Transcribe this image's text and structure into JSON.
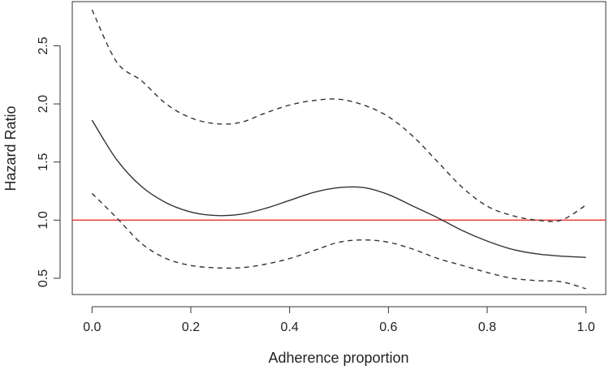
{
  "chart_data": {
    "type": "line",
    "title": "",
    "xlabel": "Adherence proportion",
    "ylabel": "Hazard Ratio",
    "xlim": [
      -0.04,
      1.04
    ],
    "ylim": [
      0.36,
      2.88
    ],
    "x_ticks": [
      {
        "value": 0.0,
        "label": "0.0"
      },
      {
        "value": 0.2,
        "label": "0.2"
      },
      {
        "value": 0.4,
        "label": "0.4"
      },
      {
        "value": 0.6,
        "label": "0.6"
      },
      {
        "value": 0.8,
        "label": "0.8"
      },
      {
        "value": 1.0,
        "label": "1.0"
      }
    ],
    "y_ticks": [
      {
        "value": 0.5,
        "label": "0.5"
      },
      {
        "value": 1.0,
        "label": "1.0"
      },
      {
        "value": 1.5,
        "label": "1.5"
      },
      {
        "value": 2.0,
        "label": "2.0"
      },
      {
        "value": 2.5,
        "label": "2.5"
      }
    ],
    "grid": false,
    "legend": "none",
    "reference_line": {
      "y": 1.0,
      "color": "#ee4444"
    },
    "series": [
      {
        "style": "solid",
        "color": "#333333",
        "x": [
          0.0,
          0.05,
          0.1,
          0.15,
          0.2,
          0.25,
          0.3,
          0.35,
          0.4,
          0.45,
          0.5,
          0.55,
          0.6,
          0.65,
          0.7,
          0.75,
          0.8,
          0.85,
          0.9,
          0.95,
          1.0
        ],
        "y": [
          1.86,
          1.52,
          1.29,
          1.15,
          1.07,
          1.04,
          1.05,
          1.1,
          1.17,
          1.24,
          1.28,
          1.28,
          1.22,
          1.12,
          1.02,
          0.91,
          0.82,
          0.75,
          0.71,
          0.69,
          0.68
        ]
      },
      {
        "style": "dashed",
        "color": "#333333",
        "x": [
          0.0,
          0.05,
          0.1,
          0.15,
          0.2,
          0.25,
          0.3,
          0.35,
          0.4,
          0.45,
          0.5,
          0.55,
          0.6,
          0.65,
          0.7,
          0.75,
          0.8,
          0.85,
          0.9,
          0.95,
          1.0
        ],
        "y": [
          2.81,
          2.36,
          2.2,
          2.0,
          1.88,
          1.83,
          1.84,
          1.92,
          1.99,
          2.03,
          2.04,
          1.99,
          1.89,
          1.72,
          1.5,
          1.28,
          1.12,
          1.04,
          1.0,
          1.0,
          1.13
        ]
      },
      {
        "style": "dashed",
        "color": "#333333",
        "x": [
          0.0,
          0.05,
          0.1,
          0.15,
          0.2,
          0.25,
          0.3,
          0.35,
          0.4,
          0.45,
          0.5,
          0.55,
          0.6,
          0.65,
          0.7,
          0.75,
          0.8,
          0.85,
          0.9,
          0.95,
          1.0
        ],
        "y": [
          1.23,
          1.02,
          0.8,
          0.67,
          0.61,
          0.59,
          0.59,
          0.62,
          0.67,
          0.74,
          0.81,
          0.83,
          0.81,
          0.75,
          0.67,
          0.61,
          0.55,
          0.5,
          0.48,
          0.47,
          0.41
        ]
      }
    ]
  }
}
